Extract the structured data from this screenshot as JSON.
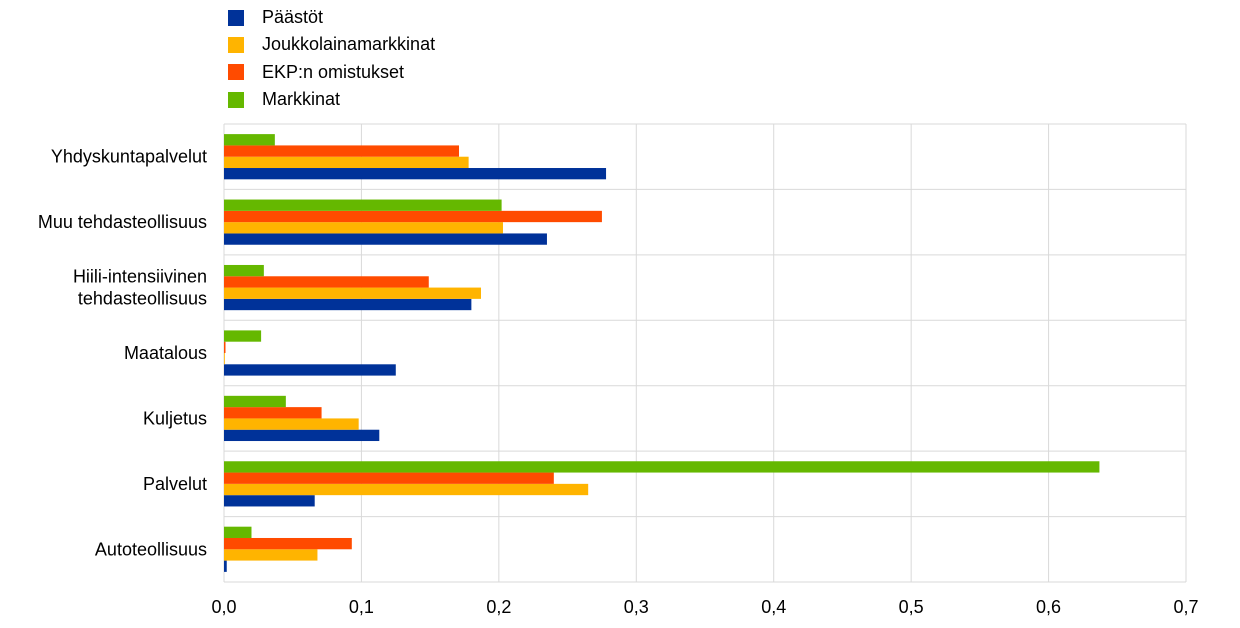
{
  "colors": {
    "paastot": "#003299",
    "joukkolaina": "#ffb400",
    "ekp": "#ff4b00",
    "markkinat": "#65b800",
    "grid": "#d9d9d9"
  },
  "chart_data": {
    "type": "bar",
    "orientation": "horizontal",
    "categories": [
      "Yhdyskuntapalvelut",
      "Muu tehdasteollisuus",
      "Hiili-intensiivinen tehdasteollisuus",
      "Maatalous",
      "Kuljetus",
      "Palvelut",
      "Autoteollisuus"
    ],
    "category_lines": [
      [
        "Yhdyskuntapalvelut"
      ],
      [
        "Muu tehdasteollisuus"
      ],
      [
        "Hiili-intensiivinen",
        "tehdasteollisuus"
      ],
      [
        "Maatalous"
      ],
      [
        "Kuljetus"
      ],
      [
        "Palvelut"
      ],
      [
        "Autoteollisuus"
      ]
    ],
    "series": [
      {
        "name": "Päästöt",
        "color": "#003299",
        "values": [
          0.278,
          0.235,
          0.18,
          0.125,
          0.113,
          0.066,
          0.002
        ]
      },
      {
        "name": "Joukkolainamarkkinat",
        "color": "#ffb400",
        "values": [
          0.178,
          0.203,
          0.187,
          0.0,
          0.098,
          0.265,
          0.068
        ]
      },
      {
        "name": "EKP:n omistukset",
        "color": "#ff4b00",
        "values": [
          0.171,
          0.275,
          0.149,
          0.001,
          0.071,
          0.24,
          0.093
        ]
      },
      {
        "name": "Markkinat",
        "color": "#65b800",
        "values": [
          0.037,
          0.202,
          0.029,
          0.027,
          0.045,
          0.637,
          0.02
        ]
      }
    ],
    "xlim": [
      0,
      0.7
    ],
    "xticks": [
      "0,0",
      "0,1",
      "0,2",
      "0,3",
      "0,4",
      "0,5",
      "0,6",
      "0,7"
    ],
    "grid": true,
    "legend_position": "top-left",
    "title": "",
    "xlabel": "",
    "ylabel": ""
  }
}
